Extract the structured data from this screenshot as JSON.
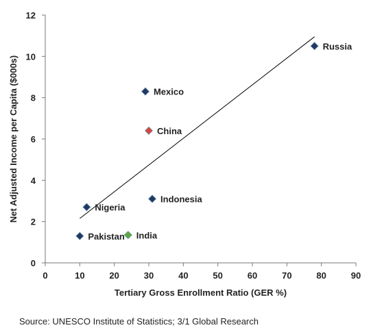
{
  "chart_data": {
    "type": "scatter",
    "xlabel": "Tertiary Gross Enrollment Ratio (GER %)",
    "ylabel": "Net Adjusted Income per Capita ($000s)",
    "xlim": [
      0,
      90
    ],
    "ylim": [
      0,
      12
    ],
    "xticks": [
      0,
      10,
      20,
      30,
      40,
      50,
      60,
      70,
      80,
      90
    ],
    "yticks": [
      0,
      2,
      4,
      6,
      8,
      10,
      12
    ],
    "grid": false,
    "points": [
      {
        "label": "Russia",
        "x": 78,
        "y": 10.5,
        "color": "#1f3a5f"
      },
      {
        "label": "Mexico",
        "x": 29,
        "y": 8.3,
        "color": "#1f3a5f"
      },
      {
        "label": "China",
        "x": 30,
        "y": 6.4,
        "color": "#d9453a"
      },
      {
        "label": "Indonesia",
        "x": 31,
        "y": 3.1,
        "color": "#1f3a5f"
      },
      {
        "label": "Nigeria",
        "x": 12,
        "y": 2.7,
        "color": "#1f3a5f"
      },
      {
        "label": "India",
        "x": 24,
        "y": 1.35,
        "color": "#5ea83a"
      },
      {
        "label": "Pakistan",
        "x": 10,
        "y": 1.3,
        "color": "#1f3a5f"
      }
    ],
    "trendline": {
      "x": [
        10,
        78
      ],
      "y": [
        2.15,
        10.95
      ],
      "color": "#000000"
    }
  },
  "source": "Source: UNESCO Institute of Statistics; 3/1 Global Research"
}
